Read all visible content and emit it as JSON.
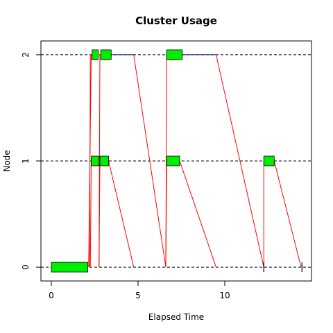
{
  "chart_data": {
    "type": "gantt",
    "title": "Cluster Usage",
    "xlabel": "Elapsed Time",
    "ylabel": "Node",
    "xlim": [
      -0.6,
      15.0
    ],
    "ylim": [
      -0.13,
      2.13
    ],
    "xticks": [
      0,
      5,
      10
    ],
    "yticks": [
      0,
      1,
      2
    ],
    "grid": "dashed horizontal at node levels",
    "colors": {
      "task": "#00ee00",
      "link": "#ff0000",
      "wait": "#000080",
      "axis": "#000000"
    },
    "tasks": [
      {
        "node": 0,
        "start": 0.0,
        "end": 2.1
      },
      {
        "node": 2,
        "start": 2.35,
        "end": 2.7
      },
      {
        "node": 2,
        "start": 2.85,
        "end": 3.45
      },
      {
        "node": 1,
        "start": 2.3,
        "end": 2.75
      },
      {
        "node": 1,
        "start": 2.8,
        "end": 3.3
      },
      {
        "node": 2,
        "start": 6.65,
        "end": 7.55
      },
      {
        "node": 1,
        "start": 6.65,
        "end": 7.4
      },
      {
        "node": 1,
        "start": 12.25,
        "end": 12.85
      }
    ],
    "waits": [
      {
        "node": 2,
        "start": 3.45,
        "end": 4.75
      },
      {
        "node": 2,
        "start": 7.55,
        "end": 9.5
      }
    ],
    "links": [
      {
        "from": [
          2.15,
          0
        ],
        "to": [
          2.3,
          2
        ]
      },
      {
        "from": [
          2.2,
          0
        ],
        "to": [
          2.25,
          2
        ]
      },
      {
        "from": [
          2.25,
          0
        ],
        "to": [
          2.3,
          1
        ]
      },
      {
        "from": [
          2.75,
          0
        ],
        "to": [
          2.8,
          2
        ]
      },
      {
        "from": [
          2.75,
          0
        ],
        "to": [
          2.8,
          1
        ]
      },
      {
        "from": [
          3.3,
          1
        ],
        "to": [
          4.75,
          0
        ]
      },
      {
        "from": [
          4.75,
          2
        ],
        "to": [
          6.6,
          0
        ]
      },
      {
        "from": [
          6.6,
          0
        ],
        "to": [
          6.65,
          2
        ]
      },
      {
        "from": [
          6.6,
          0
        ],
        "to": [
          6.65,
          1
        ]
      },
      {
        "from": [
          7.4,
          1
        ],
        "to": [
          9.5,
          0
        ]
      },
      {
        "from": [
          9.5,
          2
        ],
        "to": [
          12.25,
          0
        ]
      },
      {
        "from": [
          12.25,
          0
        ],
        "to": [
          12.25,
          1
        ]
      },
      {
        "from": [
          12.85,
          1
        ],
        "to": [
          14.4,
          0
        ]
      }
    ],
    "markers": [
      {
        "x": 12.25,
        "node": 0
      },
      {
        "x": 14.45,
        "node": 0
      }
    ]
  }
}
